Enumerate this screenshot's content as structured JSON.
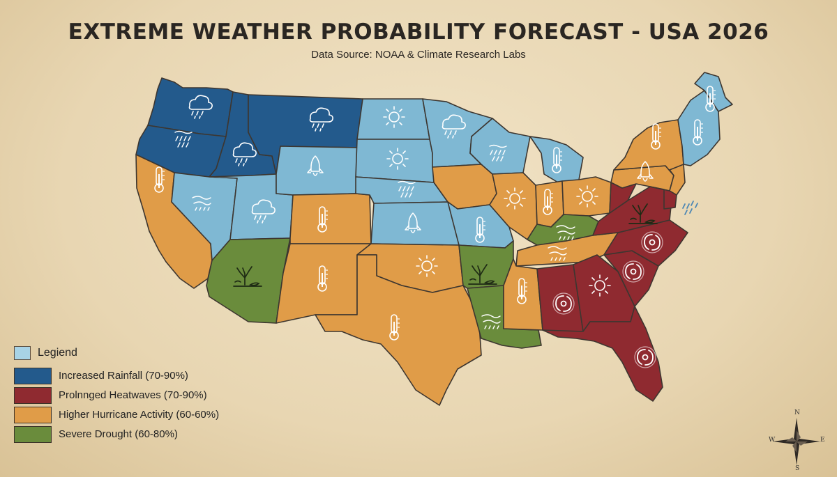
{
  "header": {
    "title": "EXTREME WEATHER PROBABILITY FORECAST - USA 2026",
    "subtitle": "Data Source: NOAA & Climate Research Labs"
  },
  "colors": {
    "rainfall": "#235a8c",
    "heatwave": "#8f2a30",
    "hurricane": "#e09c48",
    "drought": "#6a8c3c",
    "light_blue": "#7fb8d3",
    "border": "#3d3630"
  },
  "legend": {
    "title": "Legiend",
    "title_swatch_color": "#a8d3e6",
    "items": [
      {
        "label": "Increased Rainfall (70-90%)",
        "color": "#235a8c"
      },
      {
        "label": "Prolnnged Heatwaves (70-90%)",
        "color": "#8f2a30"
      },
      {
        "label": "Higher Hurricane Activity (60-60%)",
        "color": "#e09c48"
      },
      {
        "label": "Severe Drought (60-80%)",
        "color": "#6a8c3c"
      }
    ]
  },
  "compass": {
    "n": "N",
    "s": "S",
    "e": "E",
    "w": "W"
  },
  "states": [
    {
      "name": "washington",
      "category": "rainfall",
      "icon": "rain-cloud-icon"
    },
    {
      "name": "oregon",
      "category": "rainfall",
      "icon": "wind-rain-icon"
    },
    {
      "name": "idaho",
      "category": "rainfall",
      "icon": "rain-cloud-icon"
    },
    {
      "name": "montana",
      "category": "rainfall",
      "icon": "rain-cloud-icon"
    },
    {
      "name": "california",
      "category": "hurricane",
      "icon": "thermometer-icon"
    },
    {
      "name": "nevada",
      "category": "light_blue",
      "icon": "wind-icon"
    },
    {
      "name": "utah",
      "category": "light_blue",
      "icon": "rain-cloud-icon"
    },
    {
      "name": "arizona",
      "category": "drought",
      "icon": "dry-tree-icon"
    },
    {
      "name": "wyoming",
      "category": "light_blue",
      "icon": "rocket-icon"
    },
    {
      "name": "colorado",
      "category": "hurricane",
      "icon": "thermometer-icon"
    },
    {
      "name": "new-mexico",
      "category": "hurricane",
      "icon": "thermometer-icon"
    },
    {
      "name": "north-dakota",
      "category": "light_blue",
      "icon": "sun-icon"
    },
    {
      "name": "south-dakota",
      "category": "light_blue",
      "icon": "sun-icon"
    },
    {
      "name": "nebraska",
      "category": "light_blue",
      "icon": "wind-rain-icon"
    },
    {
      "name": "kansas",
      "category": "light_blue",
      "icon": "rocket-icon"
    },
    {
      "name": "oklahoma",
      "category": "hurricane",
      "icon": "sun-icon"
    },
    {
      "name": "texas",
      "category": "hurricane",
      "icon": "thermometer-icon"
    },
    {
      "name": "minnesota",
      "category": "light_blue",
      "icon": "rain-cloud-icon"
    },
    {
      "name": "iowa",
      "category": "hurricane",
      "icon": "none"
    },
    {
      "name": "missouri",
      "category": "light_blue",
      "icon": "thermometer-icon"
    },
    {
      "name": "arkansas",
      "category": "drought",
      "icon": "dry-tree-icon"
    },
    {
      "name": "louisiana",
      "category": "drought",
      "icon": "wind-icon"
    },
    {
      "name": "wisconsin",
      "category": "light_blue",
      "icon": "wind-rain-icon"
    },
    {
      "name": "michigan",
      "category": "light_blue",
      "icon": "thermometer-icon"
    },
    {
      "name": "illinois",
      "category": "hurricane",
      "icon": "sun-icon"
    },
    {
      "name": "indiana",
      "category": "hurricane",
      "icon": "thermometer-icon"
    },
    {
      "name": "ohio",
      "category": "hurricane",
      "icon": "sun-icon"
    },
    {
      "name": "kentucky",
      "category": "drought",
      "icon": "wind-icon"
    },
    {
      "name": "tennessee",
      "category": "hurricane",
      "icon": "wind-icon"
    },
    {
      "name": "mississippi",
      "category": "hurricane",
      "icon": "thermometer-icon"
    },
    {
      "name": "alabama",
      "category": "heatwave",
      "icon": "hurricane-icon"
    },
    {
      "name": "georgia",
      "category": "heatwave",
      "icon": "sun-icon"
    },
    {
      "name": "florida",
      "category": "heatwave",
      "icon": "hurricane-icon"
    },
    {
      "name": "south-carolina",
      "category": "heatwave",
      "icon": "hurricane-icon"
    },
    {
      "name": "north-carolina",
      "category": "heatwave",
      "icon": "hurricane-icon"
    },
    {
      "name": "virginia",
      "category": "heatwave",
      "icon": "dry-tree-icon"
    },
    {
      "name": "west-virginia",
      "category": "heatwave",
      "icon": "none"
    },
    {
      "name": "pennsylvania",
      "category": "hurricane",
      "icon": "rocket-icon"
    },
    {
      "name": "new-york",
      "category": "hurricane",
      "icon": "thermometer-icon"
    },
    {
      "name": "new-jersey",
      "category": "hurricane",
      "icon": "none"
    },
    {
      "name": "maryland-delaware",
      "category": "heatwave",
      "icon": "none"
    },
    {
      "name": "new-england",
      "category": "light_blue",
      "icon": "thermometer-icon"
    },
    {
      "name": "maine",
      "category": "light_blue",
      "icon": "thermometer-icon"
    }
  ]
}
